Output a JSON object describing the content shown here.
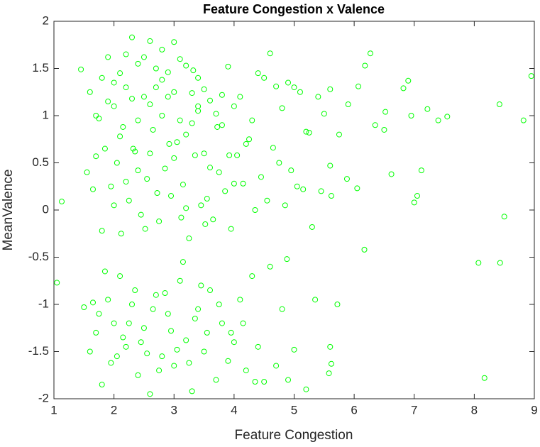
{
  "chart_data": {
    "type": "scatter",
    "title": "Feature Congestion x Valence",
    "x_label": "Feature Congestion",
    "y_label": "MeanValence",
    "color": "#00ff00",
    "xlim": [
      1,
      9
    ],
    "xticks": [
      1,
      2,
      3,
      4,
      5,
      6,
      7,
      8,
      9
    ],
    "ylim": [
      -2,
      2
    ],
    "yticks": [
      -2,
      -1.5,
      -1,
      -0.5,
      0,
      0.5,
      1,
      1.5,
      2
    ],
    "grid": false,
    "x": [
      1.6,
      1.7,
      1.8,
      1.9,
      2.0,
      2.1,
      2.2,
      2.3,
      2.4,
      2.5,
      2.6,
      2.7,
      2.8,
      2.9,
      3.0,
      3.1,
      3.2,
      3.3,
      3.4,
      3.5,
      3.6,
      3.7,
      3.8,
      3.9,
      4.0,
      4.1,
      4.2,
      4.3,
      4.4,
      4.5,
      4.6,
      4.7,
      4.8,
      4.9,
      5.0,
      5.1,
      5.2,
      5.4,
      5.5,
      5.6,
      1.55,
      1.65,
      1.75,
      1.85,
      1.95,
      2.05,
      2.15,
      2.25,
      2.35,
      2.45,
      2.55,
      2.65,
      2.75,
      2.85,
      2.95,
      3.05,
      3.15,
      3.25,
      3.35,
      3.45,
      3.55,
      3.65,
      3.75,
      3.85,
      3.95,
      4.05,
      4.15,
      4.25,
      4.35,
      4.45,
      4.55,
      4.65,
      4.75,
      4.85,
      4.95,
      5.05,
      5.15,
      5.25,
      5.45,
      5.75,
      1.7,
      1.9,
      2.1,
      2.3,
      2.5,
      2.7,
      2.9,
      3.1,
      3.3,
      3.5,
      2.0,
      2.2,
      2.4,
      2.6,
      2.8,
      3.0,
      3.2,
      3.4,
      3.6,
      3.8,
      2.12,
      2.32,
      2.52,
      2.72,
      2.92,
      3.12,
      3.32,
      3.52,
      3.72,
      3.92,
      1.8,
      2.0,
      2.2,
      2.4,
      2.6,
      2.8,
      3.0,
      3.2,
      3.4,
      4.0,
      1.5,
      1.6,
      1.7,
      1.8,
      1.9,
      2.0,
      2.1,
      2.2,
      2.3,
      2.4,
      2.5,
      2.6,
      2.7,
      2.8,
      2.9,
      3.0,
      3.1,
      3.2,
      3.3,
      3.4,
      3.5,
      3.6,
      3.7,
      3.8,
      3.9,
      4.0,
      4.1,
      4.2,
      4.3,
      4.4,
      4.5,
      4.6,
      4.7,
      4.8,
      4.9,
      5.0,
      1.75,
      1.95,
      2.15,
      2.35,
      2.55,
      2.75,
      2.95,
      3.15,
      3.35,
      3.55,
      3.75,
      3.95,
      4.15,
      4.35,
      1.65,
      1.85,
      2.05,
      2.25,
      2.45,
      2.65,
      2.85,
      3.05,
      3.25,
      3.45,
      1.05,
      1.13,
      1.45,
      8.95,
      8.82,
      8.42,
      8.5,
      8.43,
      8.07,
      8.17,
      7.55,
      7.4,
      7.22,
      7.12,
      7.05,
      7.0,
      6.95,
      6.9,
      6.82,
      6.62,
      6.52,
      6.5,
      6.35,
      6.27,
      6.17,
      6.18,
      6.05,
      6.07,
      5.9,
      5.88,
      5.62,
      5.6,
      5.6,
      5.58,
      5.62,
      5.72,
      5.35,
      5.2,
      4.88,
      5.3
    ],
    "values": [
      1.25,
      0.57,
      1.4,
      1.62,
      1.1,
      0.78,
      1.3,
      1.83,
      1.55,
      1.2,
      1.79,
      1.5,
      1.0,
      1.46,
      1.78,
      0.95,
      1.53,
      1.24,
      1.4,
      0.6,
      1.16,
      1.02,
      0.9,
      1.52,
      1.1,
      1.2,
      0.7,
      0.95,
      1.45,
      1.4,
      1.66,
      1.31,
      1.08,
      1.35,
      1.3,
      1.25,
      0.83,
      1.2,
      1.02,
      1.28,
      0.4,
      0.22,
      0.97,
      0.65,
      0.25,
      0.5,
      0.88,
      0.1,
      0.62,
      -0.05,
      0.33,
      0.85,
      -0.12,
      0.44,
      0.15,
      0.72,
      0.27,
      -0.3,
      0.58,
      0.05,
      0.12,
      -0.1,
      0.4,
      0.2,
      -0.2,
      0.58,
      0.28,
      0.75,
      0.0,
      0.35,
      0.1,
      0.66,
      0.5,
      0.05,
      0.42,
      0.25,
      0.22,
      0.82,
      0.2,
      0.8,
      1.0,
      1.15,
      1.45,
      1.18,
      1.62,
      1.3,
      1.2,
      1.6,
      0.92,
      1.28,
      0.05,
      0.3,
      0.95,
      1.12,
      1.38,
      0.55,
      0.8,
      1.05,
      0.45,
      1.22,
      -0.25,
      0.65,
      -0.2,
      0.18,
      0.7,
      -0.08,
      1.48,
      -0.15,
      0.88,
      0.58,
      -0.22,
      1.35,
      1.65,
      0.42,
      0.6,
      1.7,
      1.25,
      0.02,
      1.1,
      0.28,
      -1.03,
      -1.5,
      -1.3,
      -1.85,
      -0.95,
      -1.2,
      -0.7,
      -1.45,
      -1.0,
      -1.75,
      -1.25,
      -1.95,
      -0.9,
      -1.55,
      -1.1,
      -1.65,
      -0.75,
      -1.38,
      -1.92,
      -1.05,
      -1.5,
      -0.85,
      -1.8,
      -1.2,
      -1.6,
      -1.4,
      -0.95,
      -1.7,
      -0.7,
      -1.45,
      -1.82,
      -0.6,
      -1.65,
      -1.05,
      -1.8,
      -1.48,
      -1.1,
      -1.62,
      -1.35,
      -0.85,
      -1.52,
      -1.7,
      -1.28,
      -0.55,
      -1.15,
      -1.3,
      -1.0,
      -1.3,
      -1.2,
      -1.82,
      -0.98,
      -0.65,
      -1.55,
      -1.2,
      -1.4,
      -1.05,
      -0.88,
      -1.48,
      -1.62,
      -0.8,
      -0.77,
      0.09,
      1.49,
      1.42,
      0.95,
      1.12,
      -0.07,
      -0.56,
      -0.56,
      -1.78,
      0.99,
      0.95,
      1.07,
      0.42,
      0.15,
      0.08,
      1.0,
      1.37,
      1.29,
      0.38,
      1.04,
      0.85,
      0.9,
      1.66,
      -0.42,
      1.53,
      0.23,
      1.31,
      1.12,
      0.33,
      0.15,
      0.47,
      -1.45,
      -1.73,
      -1.63,
      -1.0,
      -0.95,
      -1.9,
      -0.52,
      -0.18
    ]
  }
}
